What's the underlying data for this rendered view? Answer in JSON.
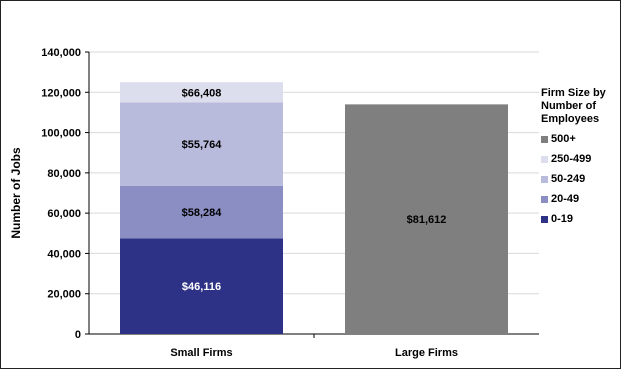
{
  "chart_data": {
    "type": "bar",
    "stacked": true,
    "categories": [
      "Small Firms",
      "Large Firms"
    ],
    "ylabel": "Number of Jobs",
    "xlabel": "",
    "ylim": [
      0,
      140000
    ],
    "yticks": [
      "0",
      "20,000",
      "40,000",
      "60,000",
      "80,000",
      "100,000",
      "120,000",
      "140,000"
    ],
    "ytick_values": [
      0,
      20000,
      40000,
      60000,
      80000,
      100000,
      120000,
      140000
    ],
    "grid": true,
    "legend": {
      "title": "Firm Size by Number of Employees",
      "position": "right",
      "entries": [
        "500+",
        "250-499",
        "50-249",
        "20-49",
        "0-19"
      ]
    },
    "series": [
      {
        "name": "0-19",
        "color": "#2e3287",
        "values": [
          47500,
          0
        ],
        "labels": [
          "$46,116",
          ""
        ],
        "label_color": "#ffffff"
      },
      {
        "name": "20-49",
        "color": "#8a8ec2",
        "values": [
          26000,
          0
        ],
        "labels": [
          "$58,284",
          ""
        ],
        "label_color": "#000000"
      },
      {
        "name": "50-249",
        "color": "#b9bbdc",
        "values": [
          41500,
          0
        ],
        "labels": [
          "$55,764",
          ""
        ],
        "label_color": "#000000"
      },
      {
        "name": "250-499",
        "color": "#dcdded",
        "values": [
          10000,
          0
        ],
        "labels": [
          "$66,408",
          ""
        ],
        "label_color": "#000000"
      },
      {
        "name": "500+",
        "color": "#7f7f7f",
        "values": [
          0,
          114000
        ],
        "labels": [
          "",
          "$81,612"
        ],
        "label_color": "#000000"
      }
    ]
  }
}
